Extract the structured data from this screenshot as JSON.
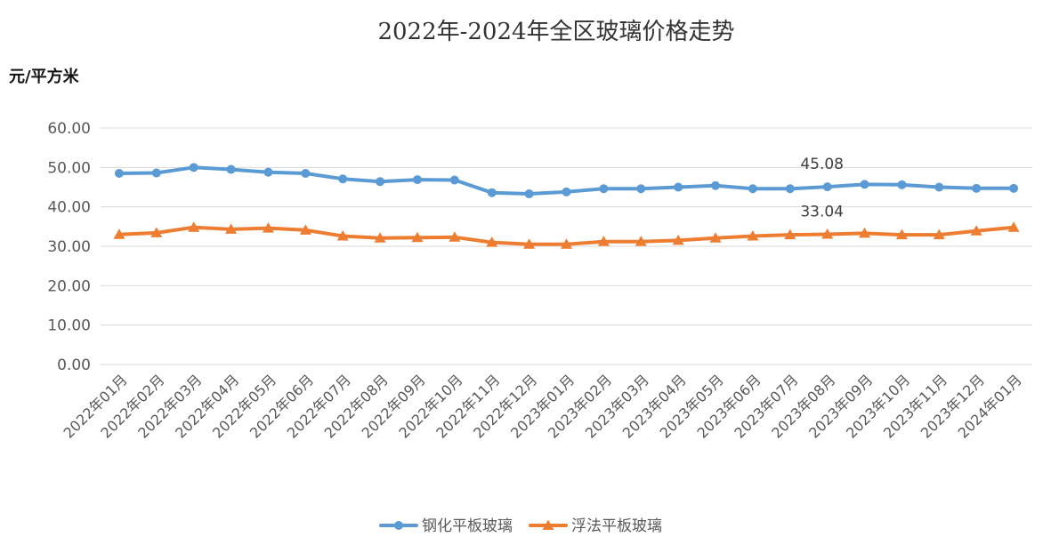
{
  "chart_data": {
    "type": "line",
    "title": "2022年-2024年全区玻璃价格走势",
    "ylabel": "元/平方米",
    "xlabel": "",
    "ylim": [
      0,
      60
    ],
    "yticks": [
      "0.00",
      "10.00",
      "20.00",
      "30.00",
      "40.00",
      "50.00",
      "60.00"
    ],
    "grid": true,
    "legend_position": "bottom",
    "categories": [
      "2022年01月",
      "2022年02月",
      "2022年03月",
      "2022年04月",
      "2022年05月",
      "2022年06月",
      "2022年07月",
      "2022年08月",
      "2022年09月",
      "2022年10月",
      "2022年11月",
      "2022年12月",
      "2023年01月",
      "2023年02月",
      "2023年03月",
      "2023年04月",
      "2023年05月",
      "2023年06月",
      "2023年07月",
      "2023年08月",
      "2023年09月",
      "2023年10月",
      "2023年11月",
      "2023年12月",
      "2024年01月"
    ],
    "series": [
      {
        "name": "钢化平板玻璃",
        "color": "#5b9bd5",
        "marker": "circle",
        "values": [
          48.5,
          48.6,
          50.0,
          49.5,
          48.8,
          48.5,
          47.1,
          46.4,
          46.9,
          46.8,
          43.6,
          43.3,
          43.8,
          44.6,
          44.6,
          45.0,
          45.4,
          44.6,
          44.6,
          45.08,
          45.7,
          45.6,
          45.0,
          44.7,
          44.7
        ]
      },
      {
        "name": "浮法平板玻璃",
        "color": "#ed7d31",
        "marker": "triangle",
        "values": [
          33.0,
          33.4,
          34.8,
          34.3,
          34.6,
          34.1,
          32.6,
          32.1,
          32.2,
          32.3,
          31.0,
          30.5,
          30.5,
          31.2,
          31.2,
          31.5,
          32.1,
          32.6,
          32.9,
          33.04,
          33.3,
          32.9,
          32.9,
          33.9,
          34.8
        ]
      }
    ],
    "data_labels": [
      {
        "series": 0,
        "index": 19,
        "text": "45.08"
      },
      {
        "series": 1,
        "index": 19,
        "text": "33.04"
      }
    ]
  }
}
